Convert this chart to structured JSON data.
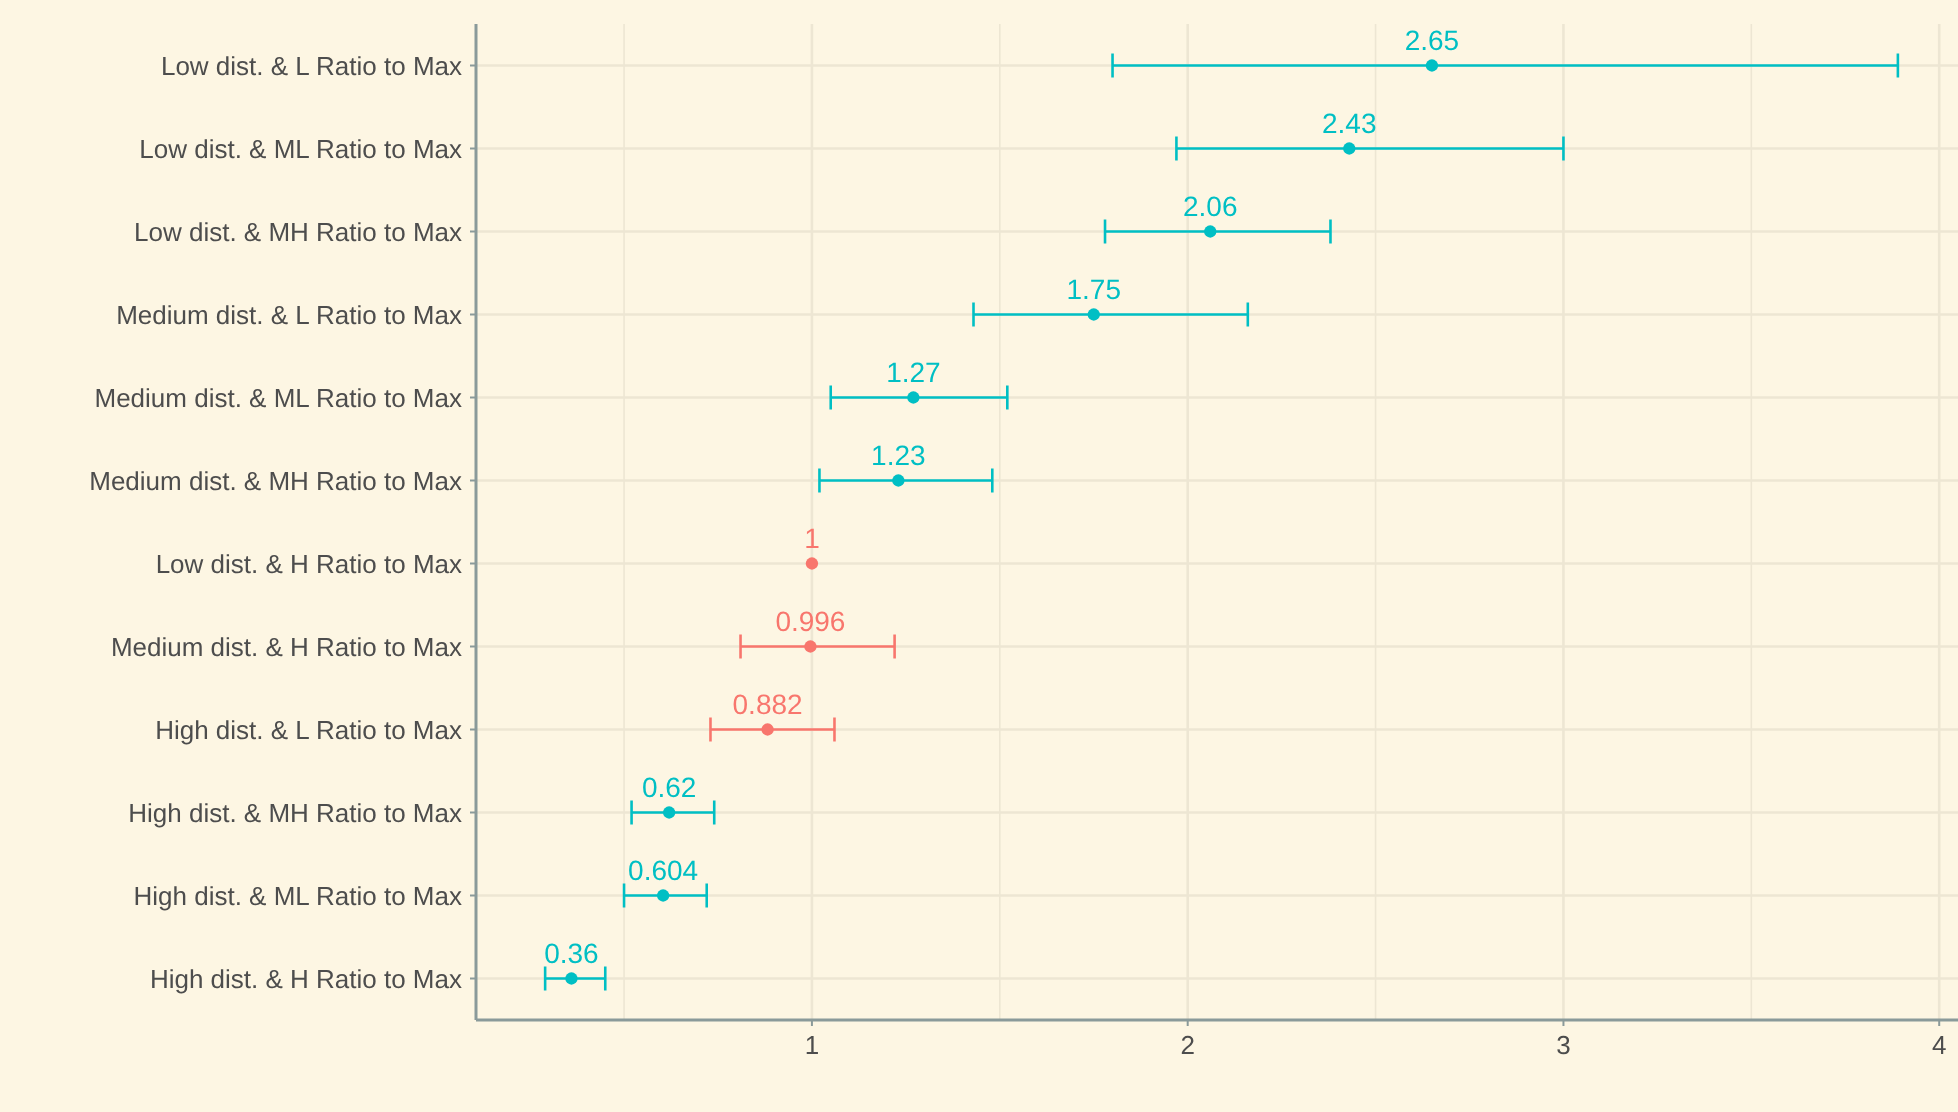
{
  "chart_data": {
    "type": "scatter",
    "orientation": "horizontal",
    "categories": [
      "Low dist. & L Ratio to Max",
      "Low dist. & ML Ratio to Max",
      "Low dist. & MH Ratio to Max",
      "Medium dist. & L Ratio to Max",
      "Medium dist. & ML Ratio to Max",
      "Medium dist. & MH Ratio to Max",
      "Low dist. & H Ratio to Max",
      "Medium dist. & H Ratio to Max",
      "High dist. & L Ratio to Max",
      "High dist. & MH Ratio to Max",
      "High dist. & ML Ratio to Max",
      "High dist. & H Ratio to Max"
    ],
    "values": [
      2.65,
      2.43,
      2.06,
      1.75,
      1.27,
      1.23,
      1,
      0.996,
      0.882,
      0.62,
      0.604,
      0.36
    ],
    "errors": [
      [
        1.8,
        3.89
      ],
      [
        1.97,
        3.0
      ],
      [
        1.78,
        2.38
      ],
      [
        1.43,
        2.16
      ],
      [
        1.05,
        1.52
      ],
      [
        1.02,
        1.48
      ],
      null,
      [
        0.81,
        1.22
      ],
      [
        0.73,
        1.06
      ],
      [
        0.52,
        0.74
      ],
      [
        0.5,
        0.72
      ],
      [
        0.29,
        0.45
      ]
    ],
    "colors": [
      "#00bfc4",
      "#00bfc4",
      "#00bfc4",
      "#00bfc4",
      "#00bfc4",
      "#00bfc4",
      "#f8766d",
      "#f8766d",
      "#f8766d",
      "#00bfc4",
      "#00bfc4",
      "#00bfc4"
    ],
    "data_labels": true,
    "marker": "circle",
    "grid": true,
    "xlim": [
      0.106,
      4.05
    ],
    "xticks": [
      {
        "value": 0.5,
        "label": null
      },
      1,
      {
        "value": 1.5,
        "label": null
      },
      2,
      {
        "value": 2.5,
        "label": null
      },
      3,
      {
        "value": 3.5,
        "label": null
      },
      4
    ]
  }
}
